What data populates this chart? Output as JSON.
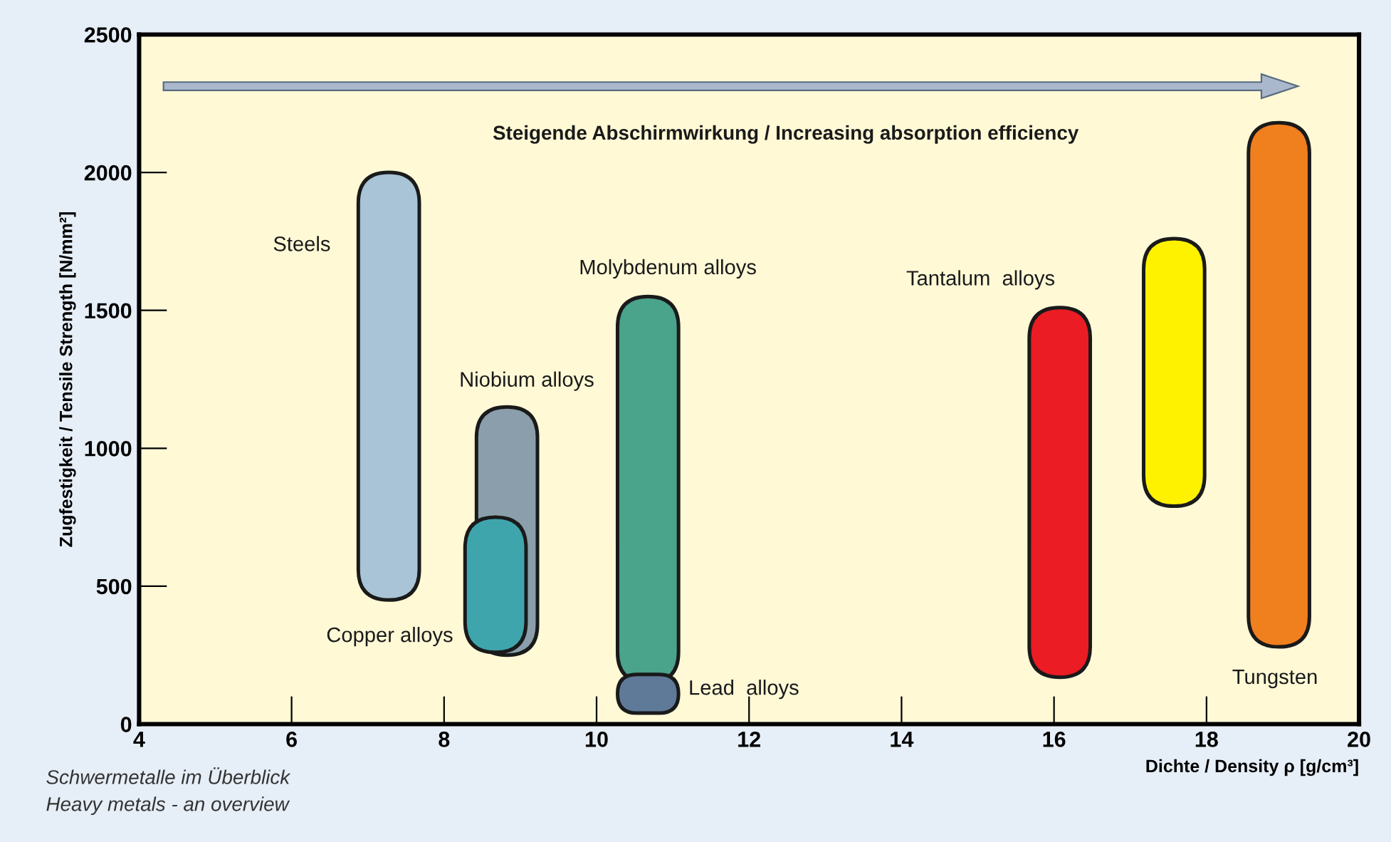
{
  "chart_data": {
    "type": "bar",
    "xlabel": "Dichte / Density ρ [g/cm³]",
    "ylabel": "Zugfestigkeit / Tensile Strength [N/mm²]",
    "xlim": [
      4,
      20
    ],
    "xticks": [
      4,
      6,
      8,
      10,
      12,
      14,
      16,
      18,
      20
    ],
    "ylim": [
      0,
      2500
    ],
    "yticks": [
      0,
      500,
      1000,
      1500,
      2000,
      2500
    ],
    "grid": false,
    "series": [
      {
        "name": "Steels",
        "color": "#a8c4d6",
        "x": [
          7.275
        ],
        "base": [
          450
        ],
        "values": [
          1550
        ]
      },
      {
        "name": "Niobium alloys",
        "color": "#8a9fab",
        "x": [
          8.825
        ],
        "base": [
          250
        ],
        "values": [
          900
        ]
      },
      {
        "name": "Copper alloys",
        "color": "#3fa5ad",
        "x": [
          8.675
        ],
        "base": [
          260
        ],
        "values": [
          490
        ]
      },
      {
        "name": "Molybdenum alloys",
        "color": "#4aa38b",
        "x": [
          10.675
        ],
        "base": [
          150
        ],
        "values": [
          1400
        ]
      },
      {
        "name": "Lead  alloys",
        "color": "#5f7a99",
        "x": [
          10.675
        ],
        "base": [
          40
        ],
        "values": [
          140
        ]
      },
      {
        "name": "Tantalum  alloys",
        "color": "#ec1c24",
        "x": [
          16.075
        ],
        "base": [
          170
        ],
        "values": [
          1340
        ]
      },
      {
        "color": "#fff200",
        "x": [
          17.575
        ],
        "base": [
          790
        ],
        "values": [
          970
        ]
      },
      {
        "name": "Tungsten",
        "color": "#f07f1e",
        "x": [
          18.95
        ],
        "base": [
          280
        ],
        "values": [
          1900
        ]
      }
    ],
    "annotations": [
      "Steigende Abschirmwirkung / Increasing absorption efficiency",
      "Schwermetalle im Überblick",
      "Heavy metals - an overview"
    ]
  }
}
